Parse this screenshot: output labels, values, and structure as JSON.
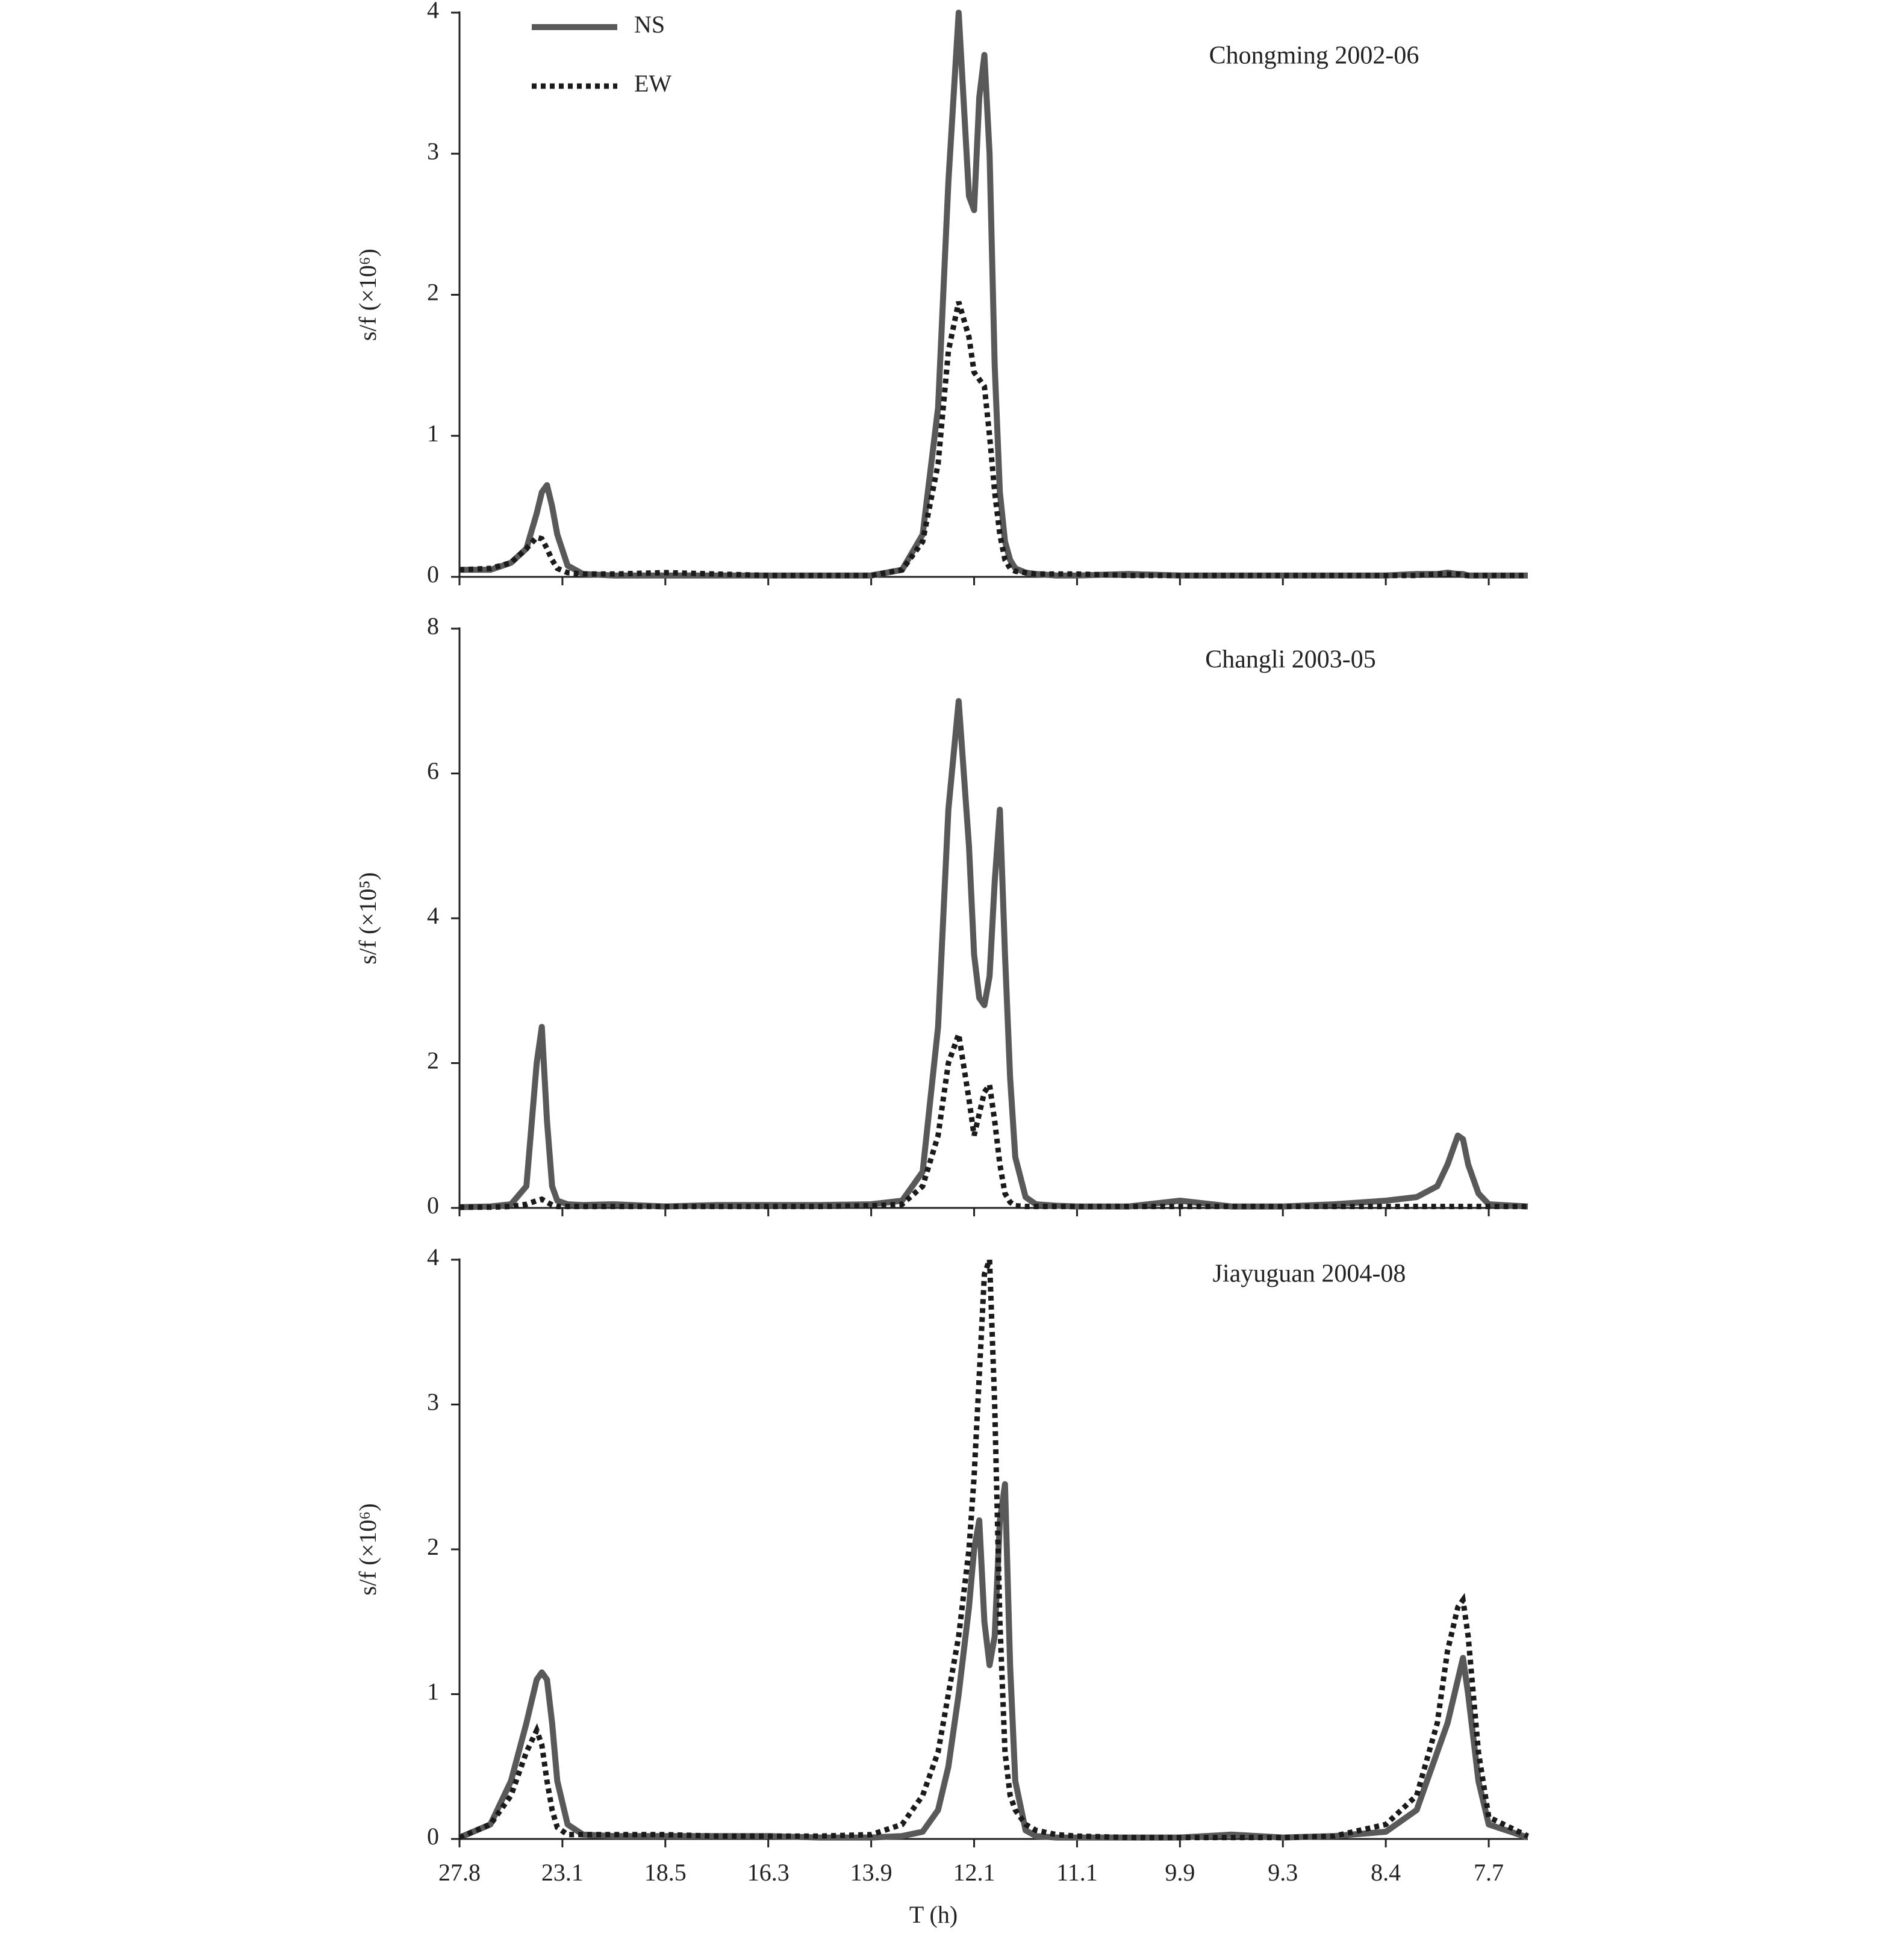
{
  "chart_data": [
    {
      "type": "line",
      "title": "Chongming 2002-06",
      "y_label": "s/f (×10⁶)",
      "legend": "upper left",
      "x": [
        0,
        0.3,
        0.5,
        0.65,
        0.75,
        0.8,
        0.85,
        0.9,
        0.95,
        1.05,
        1.2,
        1.5,
        2,
        2.5,
        3,
        3.5,
        4,
        4.3,
        4.5,
        4.65,
        4.75,
        4.85,
        4.95,
        5.0,
        5.05,
        5.1,
        5.15,
        5.2,
        5.25,
        5.3,
        5.35,
        5.4,
        5.5,
        5.6,
        5.8,
        6,
        6.5,
        7,
        7.5,
        8,
        8.5,
        9,
        9.3,
        9.5,
        9.6,
        9.7,
        9.75,
        9.8,
        9.9,
        10,
        10.38
      ],
      "xlim": [
        0,
        10.38
      ],
      "xticks": [
        0,
        1,
        2,
        3,
        4,
        5,
        6,
        7,
        8,
        9,
        10
      ],
      "ylim": [
        0,
        4
      ],
      "yticks": [
        0,
        1,
        2,
        3,
        4
      ],
      "series": [
        {
          "name": "NS",
          "color": "#595959",
          "style": "solid",
          "values": [
            0.05,
            0.05,
            0.1,
            0.2,
            0.45,
            0.6,
            0.65,
            0.5,
            0.3,
            0.08,
            0.02,
            0.01,
            0.01,
            0.01,
            0.01,
            0.01,
            0.01,
            0.05,
            0.3,
            1.2,
            2.8,
            4.0,
            2.7,
            2.6,
            3.4,
            3.7,
            3.0,
            1.5,
            0.6,
            0.25,
            0.12,
            0.06,
            0.03,
            0.02,
            0.01,
            0.01,
            0.02,
            0.01,
            0.01,
            0.01,
            0.01,
            0.01,
            0.02,
            0.02,
            0.03,
            0.02,
            0.02,
            0.01,
            0.01,
            0.01,
            0.01
          ]
        },
        {
          "name": "EW",
          "color": "#1a1a1a",
          "style": "dotted",
          "values": [
            0.05,
            0.06,
            0.1,
            0.2,
            0.28,
            0.27,
            0.2,
            0.12,
            0.06,
            0.03,
            0.02,
            0.02,
            0.03,
            0.02,
            0.01,
            0.01,
            0.01,
            0.05,
            0.25,
            0.8,
            1.6,
            1.95,
            1.7,
            1.45,
            1.4,
            1.35,
            1.0,
            0.6,
            0.3,
            0.12,
            0.06,
            0.04,
            0.03,
            0.02,
            0.02,
            0.02,
            0.01,
            0.01,
            0.01,
            0.01,
            0.01,
            0.01,
            0.01,
            0.02,
            0.02,
            0.02,
            0.01,
            0.01,
            0.01,
            0.01,
            0.01
          ]
        }
      ]
    },
    {
      "type": "line",
      "title": "Changli 2003-05",
      "y_label": "s/f (×10⁵)",
      "x": [
        0,
        0.3,
        0.5,
        0.65,
        0.75,
        0.8,
        0.85,
        0.9,
        0.95,
        1.05,
        1.2,
        1.5,
        2,
        2.5,
        3,
        3.5,
        4,
        4.3,
        4.5,
        4.65,
        4.75,
        4.85,
        4.95,
        5.0,
        5.05,
        5.1,
        5.15,
        5.2,
        5.25,
        5.3,
        5.35,
        5.4,
        5.5,
        5.6,
        5.8,
        6,
        6.5,
        7,
        7.5,
        8,
        8.5,
        9,
        9.3,
        9.5,
        9.6,
        9.7,
        9.75,
        9.8,
        9.9,
        10,
        10.38
      ],
      "xlim": [
        0,
        10.38
      ],
      "xticks": [
        0,
        1,
        2,
        3,
        4,
        5,
        6,
        7,
        8,
        9,
        10
      ],
      "ylim": [
        0,
        8
      ],
      "yticks": [
        0,
        2,
        4,
        6,
        8
      ],
      "series": [
        {
          "color": "#595959",
          "style": "solid",
          "values": [
            0.01,
            0.02,
            0.05,
            0.3,
            2.0,
            2.5,
            1.2,
            0.3,
            0.1,
            0.05,
            0.04,
            0.05,
            0.02,
            0.04,
            0.04,
            0.04,
            0.05,
            0.1,
            0.5,
            2.5,
            5.5,
            7.0,
            5.0,
            3.5,
            2.9,
            2.8,
            3.2,
            4.5,
            5.5,
            3.5,
            1.8,
            0.7,
            0.15,
            0.05,
            0.03,
            0.02,
            0.02,
            0.1,
            0.02,
            0.02,
            0.05,
            0.1,
            0.15,
            0.3,
            0.6,
            1.0,
            0.95,
            0.6,
            0.2,
            0.05,
            0.02
          ]
        },
        {
          "color": "#1a1a1a",
          "style": "dotted",
          "values": [
            0.01,
            0.01,
            0.02,
            0.05,
            0.1,
            0.12,
            0.08,
            0.04,
            0.02,
            0.02,
            0.02,
            0.02,
            0.02,
            0.02,
            0.02,
            0.02,
            0.03,
            0.05,
            0.3,
            1.0,
            2.0,
            2.4,
            1.5,
            1.0,
            1.3,
            1.6,
            1.7,
            1.2,
            0.6,
            0.2,
            0.08,
            0.03,
            0.02,
            0.02,
            0.02,
            0.02,
            0.02,
            0.02,
            0.02,
            0.02,
            0.02,
            0.02,
            0.02,
            0.02,
            0.02,
            0.02,
            0.02,
            0.02,
            0.02,
            0.02,
            0.02
          ]
        }
      ]
    },
    {
      "type": "line",
      "title": "Jiayuguan 2004-08",
      "y_label": "s/f (×10⁶)",
      "x_label": "T (h)",
      "x": [
        0,
        0.3,
        0.5,
        0.65,
        0.75,
        0.8,
        0.85,
        0.9,
        0.95,
        1.05,
        1.2,
        1.5,
        2,
        2.5,
        3,
        3.5,
        4,
        4.3,
        4.5,
        4.65,
        4.75,
        4.85,
        4.95,
        5.0,
        5.05,
        5.1,
        5.15,
        5.2,
        5.25,
        5.3,
        5.35,
        5.4,
        5.5,
        5.6,
        5.8,
        6,
        6.5,
        7,
        7.5,
        8,
        8.5,
        9,
        9.3,
        9.5,
        9.6,
        9.7,
        9.75,
        9.8,
        9.9,
        10,
        10.38
      ],
      "xlim": [
        0,
        10.38
      ],
      "xticks": [
        {
          "value": 0,
          "label": "27.8"
        },
        {
          "value": 1,
          "label": "23.1"
        },
        {
          "value": 2,
          "label": "18.5"
        },
        {
          "value": 3,
          "label": "16.3"
        },
        {
          "value": 4,
          "label": "13.9"
        },
        {
          "value": 5,
          "label": "12.1"
        },
        {
          "value": 6,
          "label": "11.1"
        },
        {
          "value": 7,
          "label": "9.9"
        },
        {
          "value": 8,
          "label": "9.3"
        },
        {
          "value": 9,
          "label": "8.4"
        },
        {
          "value": 10,
          "label": "7.7"
        }
      ],
      "ylim": [
        0,
        4
      ],
      "yticks": [
        0,
        1,
        2,
        3,
        4
      ],
      "series": [
        {
          "color": "#595959",
          "style": "solid",
          "values": [
            0.01,
            0.1,
            0.4,
            0.8,
            1.1,
            1.15,
            1.1,
            0.8,
            0.4,
            0.1,
            0.03,
            0.02,
            0.02,
            0.02,
            0.02,
            0.01,
            0.01,
            0.02,
            0.05,
            0.2,
            0.5,
            1.0,
            1.6,
            2.0,
            2.2,
            1.5,
            1.2,
            1.4,
            2.2,
            2.45,
            1.2,
            0.4,
            0.06,
            0.02,
            0.01,
            0.01,
            0.01,
            0.01,
            0.03,
            0.01,
            0.02,
            0.05,
            0.2,
            0.6,
            0.8,
            1.1,
            1.25,
            1.0,
            0.4,
            0.1,
            0.01
          ]
        },
        {
          "color": "#1a1a1a",
          "style": "dotted",
          "values": [
            0.01,
            0.1,
            0.3,
            0.6,
            0.75,
            0.65,
            0.4,
            0.2,
            0.08,
            0.03,
            0.03,
            0.03,
            0.03,
            0.02,
            0.02,
            0.02,
            0.03,
            0.1,
            0.3,
            0.6,
            1.0,
            1.4,
            2.0,
            2.5,
            3.2,
            3.9,
            4.0,
            3.0,
            1.5,
            0.6,
            0.3,
            0.2,
            0.1,
            0.06,
            0.03,
            0.02,
            0.01,
            0.01,
            0.01,
            0.01,
            0.02,
            0.1,
            0.3,
            0.8,
            1.3,
            1.6,
            1.65,
            1.4,
            0.6,
            0.15,
            0.02
          ]
        }
      ]
    }
  ]
}
